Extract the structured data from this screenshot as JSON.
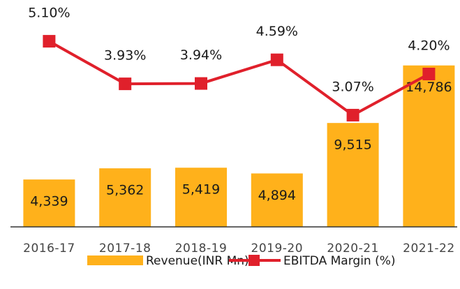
{
  "chart_data": {
    "type": "bar_line",
    "categories": [
      "2016-17",
      "2017-18",
      "2018-19",
      "2019-20",
      "2020-21",
      "2021-22"
    ],
    "series": [
      {
        "name": "Revenue(INR Mn)",
        "type": "bar",
        "color": "#FFB11B",
        "values": [
          4339,
          5362,
          5419,
          4894,
          9515,
          14786
        ],
        "value_labels": [
          "4,339",
          "5,362",
          "5,419",
          "4,894",
          "9,515",
          "14,786"
        ]
      },
      {
        "name": "EBITDA Margin (%)",
        "type": "line",
        "axis": "y2",
        "color": "#E0202B",
        "values": [
          5.1,
          3.93,
          3.94,
          4.59,
          3.07,
          4.2
        ],
        "value_labels": [
          "5.10%",
          "3.93%",
          "3.94%",
          "4.59%",
          "3.07%",
          "4.20%"
        ]
      }
    ],
    "ylim": [
      0,
      19500
    ],
    "y2lim": [
      0,
      5.85
    ],
    "legend": "bottom"
  }
}
